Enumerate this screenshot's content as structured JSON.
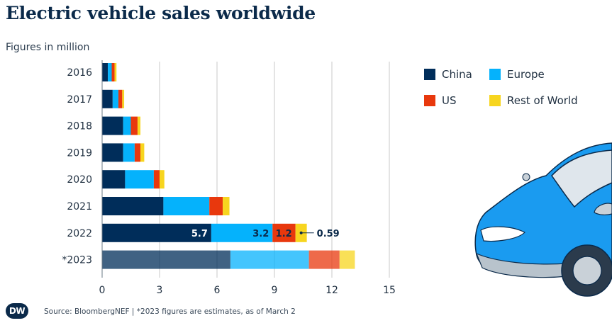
{
  "title": "Electric vehicle sales worldwide",
  "subtitle": "Figures in million",
  "footer": {
    "logo_text": "DW",
    "source": "Source: BloombergNEF | *2023 figures are estimates, as of March 2"
  },
  "colors": {
    "China": "#002d5a",
    "Europe": "#05b2fc",
    "US": "#e8380d",
    "Rest of World": "#f7d51f",
    "text": "#0b2a4a",
    "grid": "#c8c8c8",
    "car_body": "#1a9bf0"
  },
  "legend": [
    {
      "label": "China",
      "color": "#002d5a"
    },
    {
      "label": "Europe",
      "color": "#05b2fc"
    },
    {
      "label": "US",
      "color": "#e8380d"
    },
    {
      "label": "Rest of World",
      "color": "#f7d51f"
    }
  ],
  "decoration": "car-illustration",
  "chart_data": {
    "type": "bar",
    "orientation": "horizontal",
    "stacked": true,
    "title": "Electric vehicle sales worldwide",
    "subtitle": "Figures in million",
    "categories": [
      "2016",
      "2017",
      "2018",
      "2019",
      "2020",
      "2021",
      "2022",
      "*2023"
    ],
    "series": [
      {
        "name": "China",
        "values": [
          0.3,
          0.55,
          1.1,
          1.1,
          1.2,
          3.2,
          5.7,
          6.7
        ]
      },
      {
        "name": "Europe",
        "values": [
          0.2,
          0.3,
          0.4,
          0.6,
          1.5,
          2.4,
          3.2,
          4.1
        ]
      },
      {
        "name": "US",
        "values": [
          0.15,
          0.2,
          0.35,
          0.3,
          0.3,
          0.7,
          1.2,
          1.6
        ]
      },
      {
        "name": "Rest of World",
        "values": [
          0.1,
          0.1,
          0.15,
          0.2,
          0.25,
          0.35,
          0.59,
          0.8
        ]
      }
    ],
    "data_labels": {
      "2022": {
        "China": "5.7",
        "Europe": "3.2",
        "US": "1.2",
        "Rest of World": "0.59"
      }
    },
    "estimate_category": "*2023",
    "xlim": [
      0,
      15
    ],
    "xticks": [
      0,
      3,
      6,
      9,
      12,
      15
    ],
    "grid": "vertical",
    "legend_position": "right"
  }
}
